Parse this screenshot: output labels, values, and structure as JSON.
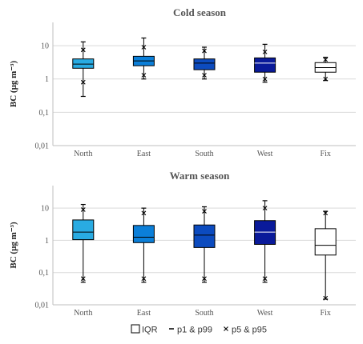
{
  "chart_data": [
    {
      "type": "box",
      "title": "Cold season",
      "ylabel": "BC (µg m⁻³)",
      "yscale": "log",
      "ylim": [
        0.01,
        50
      ],
      "yticks": [
        "0,01",
        "0,1",
        "1",
        "10"
      ],
      "grid": true,
      "categories": [
        "North",
        "East",
        "South",
        "West",
        "Fix"
      ],
      "colors": [
        "#29abe2",
        "#0b7fd9",
        "#0c4bbf",
        "#0a1a9a",
        "#ffffff"
      ],
      "boxes": [
        {
          "q1": 2.1,
          "median": 2.8,
          "q3": 4.0,
          "p1": 0.3,
          "p99": 13,
          "p5": 0.8,
          "p95": 7.5
        },
        {
          "q1": 2.5,
          "median": 3.5,
          "q3": 4.8,
          "p1": 1.0,
          "p99": 17,
          "p5": 1.3,
          "p95": 9.0
        },
        {
          "q1": 1.9,
          "median": 3.0,
          "q3": 4.0,
          "p1": 1.0,
          "p99": 9.0,
          "p5": 1.3,
          "p95": 7.0
        },
        {
          "q1": 1.6,
          "median": 3.0,
          "q3": 4.3,
          "p1": 0.8,
          "p99": 11,
          "p5": 1.0,
          "p95": 6.5
        },
        {
          "q1": 1.6,
          "median": 2.2,
          "q3": 3.1,
          "p1": 0.9,
          "p99": 4.5,
          "p5": 1.0,
          "p95": 3.8
        }
      ]
    },
    {
      "type": "box",
      "title": "Warm season",
      "ylabel": "BC (µg m⁻³)",
      "yscale": "log",
      "ylim": [
        0.01,
        50
      ],
      "yticks": [
        "0,01",
        "0,1",
        "1",
        "10"
      ],
      "grid": true,
      "categories": [
        "North",
        "East",
        "South",
        "West",
        "Fix"
      ],
      "colors": [
        "#29abe2",
        "#0b7fd9",
        "#0c4bbf",
        "#0a1a9a",
        "#ffffff"
      ],
      "boxes": [
        {
          "q1": 1.05,
          "median": 1.8,
          "q3": 4.3,
          "p1": 0.05,
          "p99": 13,
          "p5": 0.065,
          "p95": 9.0
        },
        {
          "q1": 0.85,
          "median": 1.25,
          "q3": 2.9,
          "p1": 0.05,
          "p99": 10,
          "p5": 0.065,
          "p95": 7.0
        },
        {
          "q1": 0.6,
          "median": 1.45,
          "q3": 3.0,
          "p1": 0.05,
          "p99": 11,
          "p5": 0.065,
          "p95": 8.0
        },
        {
          "q1": 0.75,
          "median": 1.8,
          "q3": 4.1,
          "p1": 0.05,
          "p99": 17,
          "p5": 0.065,
          "p95": 10
        },
        {
          "q1": 0.35,
          "median": 0.7,
          "q3": 2.3,
          "p1": 0.015,
          "p99": 8.0,
          "p5": 0.016,
          "p95": 7.0
        }
      ]
    }
  ],
  "legend": {
    "iqr_label": "IQR",
    "p1_label": "p1 & p99",
    "p5_label": "p5 & p95",
    "placement": "bottom"
  }
}
